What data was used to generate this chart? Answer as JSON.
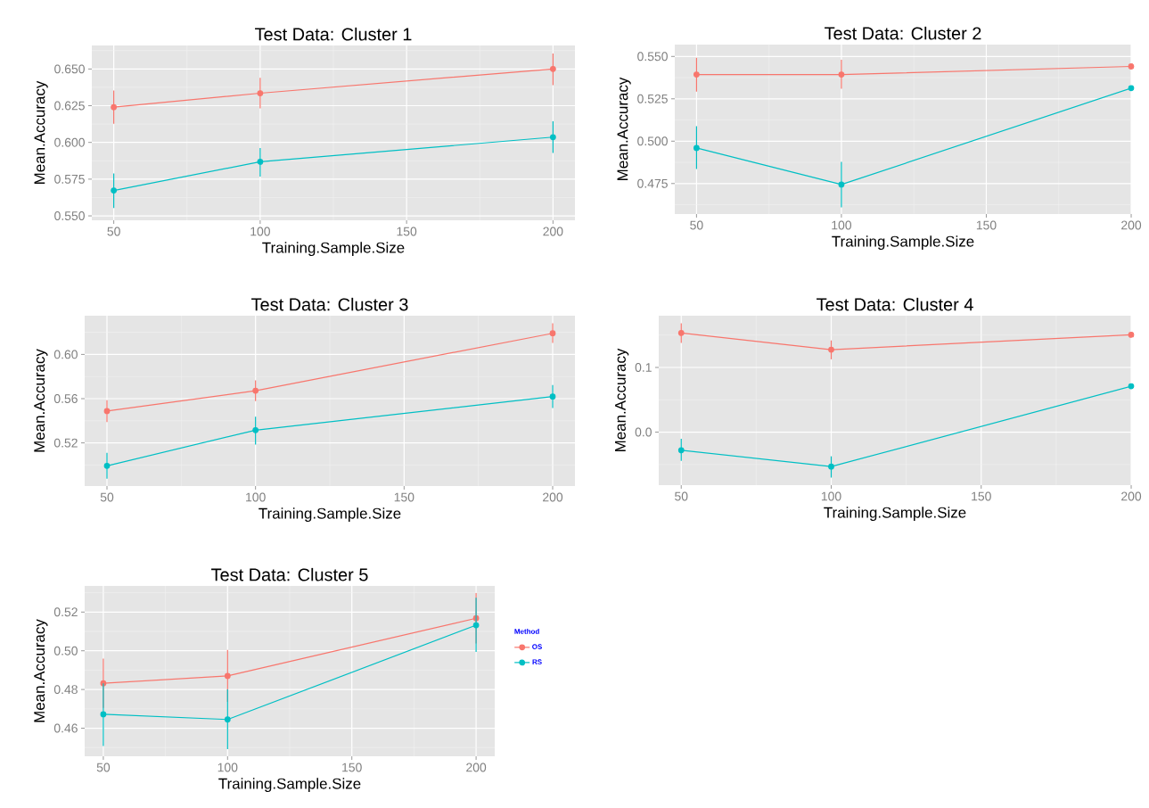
{
  "chart_data": [
    {
      "type": "line",
      "title": "Test Data: Cluster 1",
      "xlabel": "Training.Sample.Size",
      "ylabel": "Mean.Accuracy",
      "x": [
        50,
        100,
        200
      ],
      "xlim": [
        42.5,
        207.5
      ],
      "xticks": [
        50,
        100,
        150,
        200
      ],
      "ylim": [
        0.547,
        0.666
      ],
      "yticks": [
        {
          "value": 0.55,
          "label": "0.550"
        },
        {
          "value": 0.575,
          "label": "0.575"
        },
        {
          "value": 0.6,
          "label": "0.600"
        },
        {
          "value": 0.625,
          "label": "0.625"
        },
        {
          "value": 0.65,
          "label": "0.650"
        }
      ],
      "grid": true,
      "marker": "circle",
      "series": [
        {
          "color": "#f8766d",
          "values": [
            0.624,
            0.6335,
            0.65
          ],
          "errors": [
            [
              0.6127,
              0.6353
            ],
            [
              0.6232,
              0.644
            ],
            [
              0.639,
              0.6605
            ]
          ]
        },
        {
          "color": "#00bfc4",
          "values": [
            0.5673,
            0.5868,
            0.6036
          ],
          "errors": [
            [
              0.5553,
              0.5788
            ],
            [
              0.5768,
              0.5961
            ],
            [
              0.5928,
              0.6144
            ]
          ]
        }
      ]
    },
    {
      "type": "line",
      "title": "Test Data: Cluster 2",
      "xlabel": "Training.Sample.Size",
      "ylabel": "Mean.Accuracy",
      "x": [
        50,
        100,
        200
      ],
      "xlim": [
        42.5,
        200
      ],
      "xticks": [
        50,
        100,
        150,
        200
      ],
      "ylim": [
        0.457,
        0.557
      ],
      "yticks": [
        {
          "value": 0.475,
          "label": "0.475"
        },
        {
          "value": 0.5,
          "label": "0.500"
        },
        {
          "value": 0.525,
          "label": "0.525"
        },
        {
          "value": 0.55,
          "label": "0.550"
        }
      ],
      "grid": true,
      "marker": "circle",
      "series": [
        {
          "color": "#f8766d",
          "values": [
            0.5393,
            0.5393,
            0.5441
          ],
          "errors": [
            [
              0.5292,
              0.5492
            ],
            [
              0.5309,
              0.5481
            ],
            null
          ]
        },
        {
          "color": "#00bfc4",
          "values": [
            0.496,
            0.4744,
            0.5313
          ],
          "errors": [
            [
              0.4836,
              0.5088
            ],
            [
              0.4609,
              0.4878
            ],
            null
          ]
        }
      ]
    },
    {
      "type": "line",
      "title": "Test Data: Cluster 3",
      "xlabel": "Training.Sample.Size",
      "ylabel": "Mean.Accuracy",
      "x": [
        50,
        100,
        200
      ],
      "xlim": [
        42.5,
        207.5
      ],
      "xticks": [
        50,
        100,
        150,
        200
      ],
      "ylim": [
        0.481,
        0.635
      ],
      "yticks": [
        {
          "value": 0.52,
          "label": "0.52"
        },
        {
          "value": 0.56,
          "label": "0.56"
        },
        {
          "value": 0.6,
          "label": "0.60"
        }
      ],
      "grid": true,
      "marker": "circle",
      "series": [
        {
          "color": "#f8766d",
          "values": [
            0.5488,
            0.5672,
            0.6191
          ],
          "errors": [
            [
              0.5388,
              0.5585
            ],
            [
              0.5578,
              0.5766
            ],
            [
              0.6104,
              0.6281
            ]
          ]
        },
        {
          "color": "#00bfc4",
          "values": [
            0.4993,
            0.5315,
            0.5619
          ],
          "errors": [
            [
              0.4876,
              0.511
            ],
            [
              0.5184,
              0.5436
            ],
            [
              0.5515,
              0.5723
            ]
          ]
        }
      ]
    },
    {
      "type": "line",
      "title": "Test Data: Cluster 4",
      "xlabel": "Training.Sample.Size",
      "ylabel": "Mean.Accuracy",
      "x": [
        50,
        100,
        200
      ],
      "xlim": [
        42.5,
        200
      ],
      "xticks": [
        50,
        100,
        150,
        200
      ],
      "ylim": [
        -0.082,
        0.18
      ],
      "yticks": [
        {
          "value": 0.0,
          "label": "0.0"
        },
        {
          "value": 0.1,
          "label": "0.1"
        }
      ],
      "grid": true,
      "marker": "circle",
      "series": [
        {
          "color": "#f8766d",
          "values": [
            0.1533,
            0.1275,
            0.1505
          ],
          "errors": [
            [
              0.1379,
              0.1681
            ],
            [
              0.1126,
              0.1418
            ],
            null
          ]
        },
        {
          "color": "#00bfc4",
          "values": [
            -0.028,
            -0.0533,
            0.0709
          ],
          "errors": [
            [
              -0.0445,
              -0.0104
            ],
            [
              -0.0703,
              -0.0374
            ],
            null
          ]
        }
      ]
    },
    {
      "type": "line",
      "title": "Test Data: Cluster 5",
      "xlabel": "Training.Sample.Size",
      "ylabel": "Mean.Accuracy",
      "x": [
        50,
        100,
        200
      ],
      "xlim": [
        42.5,
        207.5
      ],
      "xticks": [
        50,
        100,
        150,
        200
      ],
      "ylim": [
        0.4455,
        0.5335
      ],
      "yticks": [
        {
          "value": 0.46,
          "label": "0.46"
        },
        {
          "value": 0.48,
          "label": "0.48"
        },
        {
          "value": 0.5,
          "label": "0.50"
        },
        {
          "value": 0.52,
          "label": "0.52"
        }
      ],
      "grid": true,
      "marker": "circle",
      "legend": "right",
      "legend_title": "Method",
      "series": [
        {
          "name": "OS",
          "color": "#f8766d",
          "values": [
            0.4832,
            0.487,
            0.5168
          ],
          "errors": [
            [
              0.4705,
              0.496
            ],
            [
              0.4736,
              0.5004
            ],
            [
              0.5038,
              0.5298
            ]
          ]
        },
        {
          "name": "RS",
          "color": "#00bfc4",
          "values": [
            0.4672,
            0.4645,
            0.5132
          ],
          "errors": [
            [
              0.4508,
              0.4832
            ],
            [
              0.4492,
              0.48
            ],
            [
              0.4994,
              0.5274
            ]
          ]
        }
      ]
    }
  ]
}
